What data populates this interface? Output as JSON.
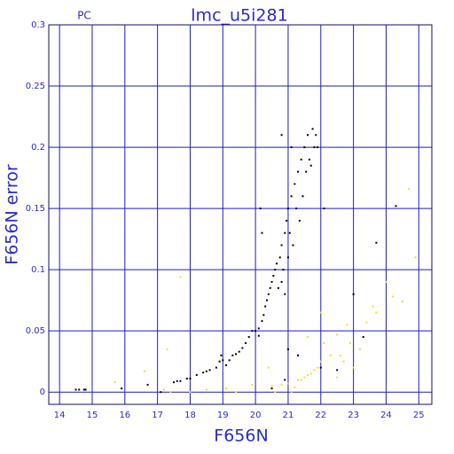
{
  "chart_data": {
    "type": "scatter",
    "title": "lmc_u5i281",
    "subtitle": "PC",
    "x_label": "F656N",
    "y_label": "F656N error",
    "xlim": [
      13.67,
      25.4
    ],
    "ylim": [
      -0.01,
      0.3
    ],
    "xticks": [
      14,
      15,
      16,
      17,
      18,
      19,
      20,
      21,
      22,
      23,
      24,
      25
    ],
    "yticks": [
      0,
      0.05,
      0.1,
      0.15,
      0.2,
      0.25,
      0.3
    ],
    "grid": true,
    "grid_color": "#1c1cc8",
    "series": [
      {
        "color": "#000000",
        "x": [
          14.5,
          14.6,
          14.75,
          14.8,
          15.9,
          16.7,
          17.5,
          17.6,
          17.7,
          17.9,
          18.0,
          18.2,
          18.4,
          18.5,
          18.6,
          18.8,
          18.9,
          18.95,
          19.1,
          19.2,
          19.3,
          19.4,
          19.5,
          19.6,
          19.7,
          19.8,
          19.9,
          20.0,
          20.1,
          20.1,
          20.2,
          20.25,
          20.3,
          20.35,
          20.4,
          20.45,
          20.5,
          20.55,
          20.6,
          20.65,
          20.7,
          20.75,
          20.8,
          20.8,
          20.85,
          20.9,
          20.9,
          20.95,
          21.0,
          21.0,
          21.05,
          21.1,
          21.1,
          21.15,
          21.2,
          21.25,
          21.3,
          21.35,
          21.4,
          21.45,
          21.5,
          21.55,
          21.6,
          21.65,
          21.7,
          21.75,
          21.8,
          21.85,
          21.9,
          20.8,
          20.15,
          20.2,
          22.1,
          21.0,
          22.0,
          22.5,
          23.0,
          23.3,
          23.7,
          24.3,
          20.9,
          21.3,
          20.5,
          19.0,
          17.1
        ],
        "values": [
          0.002,
          0.002,
          0.002,
          0.002,
          0.003,
          0.006,
          0.008,
          0.009,
          0.009,
          0.011,
          0.011,
          0.014,
          0.016,
          0.017,
          0.018,
          0.02,
          0.025,
          0.03,
          0.022,
          0.026,
          0.03,
          0.031,
          0.033,
          0.036,
          0.04,
          0.045,
          0.05,
          0.05,
          0.046,
          0.052,
          0.058,
          0.063,
          0.07,
          0.075,
          0.08,
          0.085,
          0.09,
          0.095,
          0.1,
          0.105,
          0.085,
          0.11,
          0.09,
          0.12,
          0.1,
          0.13,
          0.08,
          0.14,
          0.11,
          0.15,
          0.13,
          0.16,
          0.2,
          0.12,
          0.17,
          0.15,
          0.18,
          0.14,
          0.19,
          0.16,
          0.2,
          0.18,
          0.21,
          0.19,
          0.185,
          0.215,
          0.2,
          0.21,
          0.2,
          0.21,
          0.15,
          0.13,
          0.15,
          0.035,
          0.02,
          0.018,
          0.08,
          0.045,
          0.122,
          0.152,
          0.01,
          0.03,
          0.003,
          0.026,
          0.0
        ]
      },
      {
        "color": "#f0e020",
        "x": [
          15.7,
          16.6,
          17.2,
          17.3,
          17.4,
          17.7,
          18.0,
          18.5,
          19.1,
          19.4,
          19.9,
          20.4,
          20.5,
          20.8,
          21.0,
          21.2,
          21.3,
          21.4,
          21.5,
          21.6,
          21.7,
          21.8,
          21.9,
          22.0,
          22.1,
          22.3,
          22.5,
          22.6,
          22.7,
          22.8,
          22.9,
          23.0,
          23.2,
          23.4,
          23.6,
          23.7,
          24.0,
          24.2,
          24.5,
          24.7,
          24.9,
          22.0,
          21.6,
          22.5,
          21.1,
          20.6
        ],
        "values": [
          0.008,
          0.017,
          0.002,
          0.035,
          0.0,
          0.094,
          0.0,
          0.002,
          0.003,
          0.0,
          0.006,
          0.02,
          0.005,
          0.006,
          0.007,
          0.004,
          0.01,
          0.01,
          0.012,
          0.014,
          0.015,
          0.018,
          0.02,
          0.025,
          0.04,
          0.03,
          0.047,
          0.03,
          0.025,
          0.055,
          0.04,
          0.02,
          0.035,
          0.057,
          0.07,
          0.065,
          0.09,
          0.078,
          0.074,
          0.166,
          0.11,
          0.065,
          0.045,
          0.012,
          0.0,
          0.0
        ]
      }
    ]
  }
}
